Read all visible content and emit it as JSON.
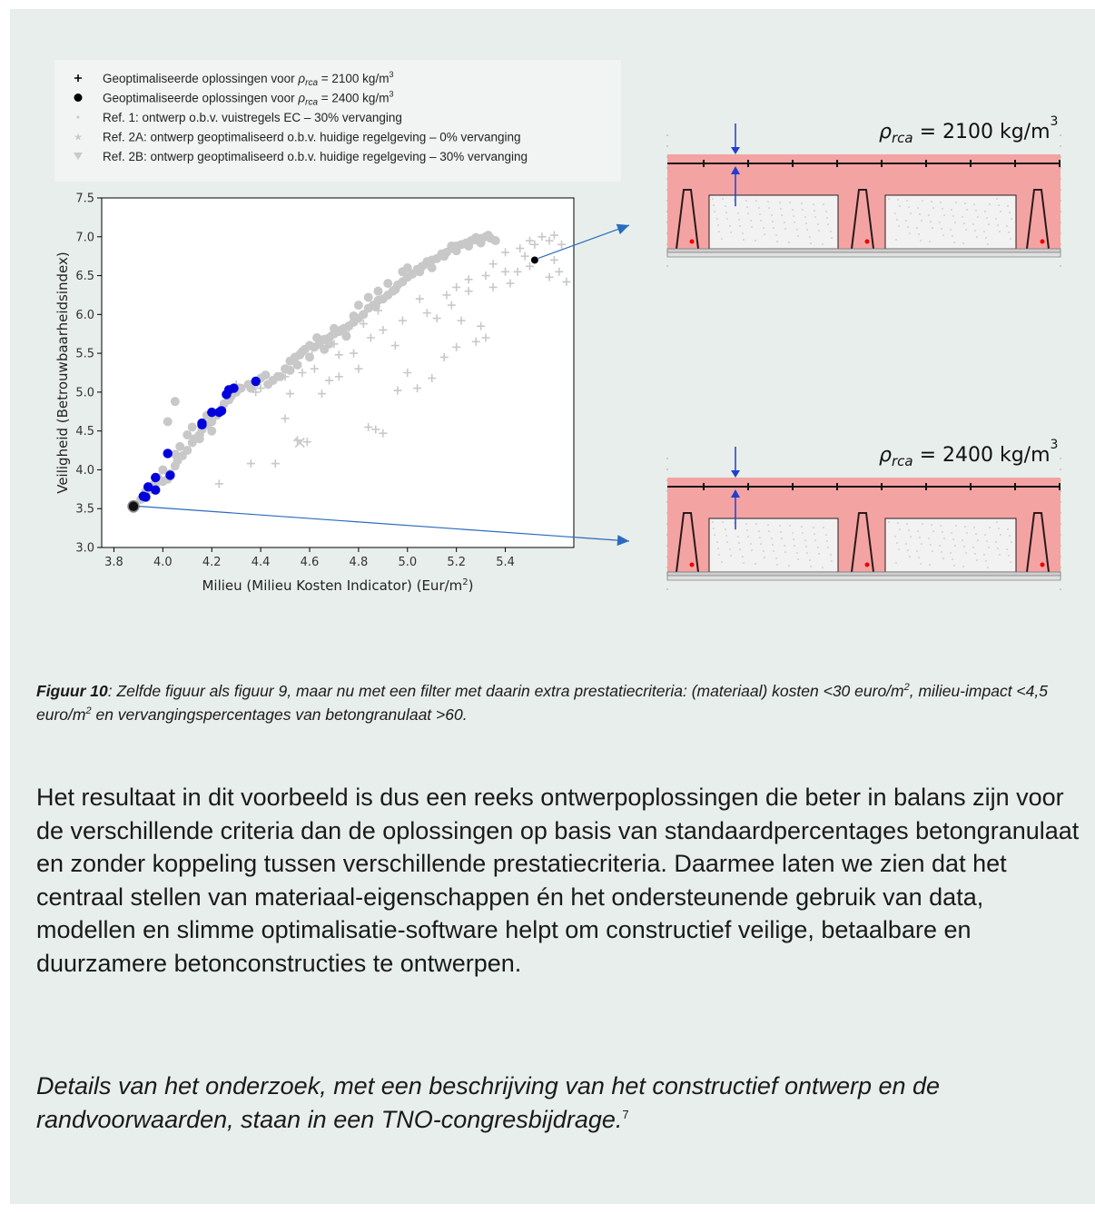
{
  "colors": {
    "background": "#e8eeec",
    "optimized": "#0000dd",
    "reference": "#c8c8c8",
    "arrow": "#2a6bbf",
    "slab_fill": "#f4a3a3"
  },
  "chart_data": {
    "type": "scatter",
    "xlabel_main": "Milieu (Milieu Kosten Indicator) (Eur/m",
    "xlabel_sup": "2",
    "xlabel_end": ")",
    "ylabel": "Veiligheid (Betrouwbaarheidsindex)",
    "xlim": [
      3.75,
      5.68
    ],
    "ylim": [
      3.0,
      7.5
    ],
    "xticks": [
      "3.8",
      "4.0",
      "4.2",
      "4.4",
      "4.6",
      "4.8",
      "5.0",
      "5.2",
      "5.4"
    ],
    "yticks": [
      "3.0",
      "3.5",
      "4.0",
      "4.5",
      "5.0",
      "5.5",
      "6.0",
      "6.5",
      "7.0",
      "7.5"
    ],
    "grid": false,
    "legend_position": "above",
    "legend": [
      {
        "marker": "plus",
        "pre": "Geoptimaliseerde oplossingen voor ",
        "rho": "ρ",
        "sub": "rca",
        "post": " = 2100 kg/m",
        "sup": "3"
      },
      {
        "marker": "dot",
        "pre": "Geoptimaliseerde oplossingen voor ",
        "rho": "ρ",
        "sub": "rca",
        "post": " = 2400 kg/m",
        "sup": "3"
      },
      {
        "marker": "small-dot",
        "pre": "Ref. 1: ontwerp o.b.v. vuistregels EC – 30% vervanging",
        "rho": "",
        "sub": "",
        "post": "",
        "sup": ""
      },
      {
        "marker": "star",
        "pre": "Ref. 2A: ontwerp geoptimaliseerd o.b.v. huidige regelgeving – 0% vervanging",
        "rho": "",
        "sub": "",
        "post": "",
        "sup": ""
      },
      {
        "marker": "triangle-down",
        "pre": "Ref. 2B: ontwerp geoptimaliseerd o.b.v. huidige regelgeving – 30% vervanging",
        "rho": "",
        "sub": "",
        "post": "",
        "sup": ""
      }
    ],
    "series": [
      {
        "name": "reference-dots",
        "marker": "dot",
        "points": [
          [
            3.88,
            3.5
          ],
          [
            3.91,
            3.62
          ],
          [
            3.93,
            3.72
          ],
          [
            3.95,
            3.75
          ],
          [
            3.97,
            3.82
          ],
          [
            4.0,
            3.85
          ],
          [
            4.02,
            3.88
          ],
          [
            4.03,
            3.95
          ],
          [
            4.05,
            4.05
          ],
          [
            4.06,
            4.12
          ],
          [
            4.08,
            4.18
          ],
          [
            4.1,
            4.25
          ],
          [
            4.12,
            4.35
          ],
          [
            4.13,
            4.4
          ],
          [
            4.15,
            4.45
          ],
          [
            4.16,
            4.52
          ],
          [
            4.18,
            4.58
          ],
          [
            4.2,
            4.62
          ],
          [
            4.22,
            4.7
          ],
          [
            4.24,
            4.78
          ],
          [
            4.25,
            4.85
          ],
          [
            4.27,
            4.9
          ],
          [
            4.3,
            5.0
          ],
          [
            4.32,
            5.05
          ],
          [
            4.35,
            5.1
          ],
          [
            4.38,
            5.12
          ],
          [
            4.4,
            5.18
          ],
          [
            4.43,
            5.1
          ],
          [
            4.45,
            5.15
          ],
          [
            4.48,
            5.2
          ],
          [
            4.5,
            5.3
          ],
          [
            4.52,
            5.4
          ],
          [
            4.54,
            5.45
          ],
          [
            4.56,
            5.48
          ],
          [
            4.58,
            5.55
          ],
          [
            4.6,
            5.6
          ],
          [
            4.62,
            5.58
          ],
          [
            4.64,
            5.62
          ],
          [
            4.66,
            5.68
          ],
          [
            4.68,
            5.7
          ],
          [
            4.7,
            5.75
          ],
          [
            4.72,
            5.78
          ],
          [
            4.74,
            5.82
          ],
          [
            4.76,
            5.85
          ],
          [
            4.78,
            5.9
          ],
          [
            4.8,
            5.95
          ],
          [
            4.82,
            6.0
          ],
          [
            4.84,
            6.08
          ],
          [
            4.86,
            6.12
          ],
          [
            4.88,
            6.18
          ],
          [
            4.9,
            6.2
          ],
          [
            4.92,
            6.25
          ],
          [
            4.94,
            6.3
          ],
          [
            4.96,
            6.38
          ],
          [
            4.98,
            6.42
          ],
          [
            5.0,
            6.48
          ],
          [
            5.02,
            6.52
          ],
          [
            5.04,
            6.58
          ],
          [
            5.06,
            6.62
          ],
          [
            5.08,
            6.65
          ],
          [
            5.1,
            6.7
          ],
          [
            5.12,
            6.72
          ],
          [
            5.14,
            6.78
          ],
          [
            5.16,
            6.8
          ],
          [
            5.18,
            6.85
          ],
          [
            5.2,
            6.88
          ],
          [
            5.22,
            6.9
          ],
          [
            5.24,
            6.92
          ],
          [
            5.26,
            6.95
          ],
          [
            5.28,
            6.96
          ],
          [
            5.3,
            6.98
          ],
          [
            5.32,
            7.0
          ],
          [
            5.34,
            6.98
          ],
          [
            5.36,
            6.95
          ],
          [
            4.1,
            4.45
          ],
          [
            4.15,
            4.4
          ],
          [
            4.2,
            4.5
          ],
          [
            4.0,
            4.0
          ],
          [
            3.98,
            3.9
          ],
          [
            4.05,
            4.2
          ],
          [
            4.28,
            4.95
          ],
          [
            4.42,
            5.22
          ],
          [
            4.57,
            5.52
          ],
          [
            4.73,
            5.8
          ],
          [
            4.87,
            6.1
          ],
          [
            4.95,
            6.32
          ],
          [
            5.05,
            6.55
          ],
          [
            5.15,
            6.75
          ],
          [
            5.25,
            6.88
          ],
          [
            4.92,
            6.4
          ],
          [
            4.84,
            6.22
          ],
          [
            4.78,
            5.98
          ],
          [
            4.7,
            5.82
          ],
          [
            4.63,
            5.7
          ],
          [
            5.1,
            6.6
          ],
          [
            5.2,
            6.82
          ],
          [
            5.3,
            6.92
          ],
          [
            4.98,
            6.55
          ],
          [
            4.88,
            6.3
          ],
          [
            4.8,
            6.12
          ],
          [
            4.66,
            5.55
          ],
          [
            4.6,
            5.45
          ],
          [
            4.52,
            5.28
          ],
          [
            4.36,
            5.05
          ],
          [
            4.18,
            4.7
          ],
          [
            4.12,
            4.55
          ],
          [
            4.07,
            4.3
          ],
          [
            3.96,
            3.8
          ],
          [
            5.0,
            6.6
          ],
          [
            5.08,
            6.68
          ],
          [
            5.18,
            6.88
          ],
          [
            5.28,
            6.99
          ],
          [
            5.33,
            7.02
          ],
          [
            4.75,
            5.72
          ],
          [
            4.68,
            5.62
          ],
          [
            4.55,
            5.35
          ],
          [
            4.47,
            5.2
          ],
          [
            4.02,
            4.62
          ],
          [
            4.05,
            4.88
          ]
        ]
      },
      {
        "name": "reference-pluses",
        "marker": "plus",
        "points": [
          [
            4.23,
            3.82
          ],
          [
            4.36,
            4.08
          ],
          [
            4.46,
            4.08
          ],
          [
            4.55,
            4.38
          ],
          [
            4.59,
            4.36
          ],
          [
            4.5,
            4.66
          ],
          [
            4.65,
            4.98
          ],
          [
            4.68,
            5.15
          ],
          [
            4.72,
            5.2
          ],
          [
            4.8,
            5.3
          ],
          [
            4.84,
            4.55
          ],
          [
            4.87,
            4.52
          ],
          [
            4.9,
            4.47
          ],
          [
            4.96,
            5.02
          ],
          [
            5.04,
            5.05
          ],
          [
            5.1,
            5.18
          ],
          [
            5.0,
            5.25
          ],
          [
            5.15,
            5.45
          ],
          [
            5.2,
            5.58
          ],
          [
            5.28,
            5.65
          ],
          [
            5.32,
            5.7
          ],
          [
            5.3,
            5.85
          ],
          [
            5.22,
            5.92
          ],
          [
            5.12,
            5.95
          ],
          [
            5.05,
            6.2
          ],
          [
            5.16,
            6.25
          ],
          [
            5.2,
            6.35
          ],
          [
            5.25,
            6.45
          ],
          [
            5.32,
            6.5
          ],
          [
            5.4,
            6.55
          ],
          [
            5.45,
            6.55
          ],
          [
            5.5,
            6.62
          ],
          [
            5.35,
            6.65
          ],
          [
            5.4,
            6.8
          ],
          [
            5.46,
            6.85
          ],
          [
            5.52,
            6.9
          ],
          [
            5.58,
            6.95
          ],
          [
            5.6,
            6.7
          ],
          [
            5.62,
            6.55
          ],
          [
            5.58,
            6.48
          ],
          [
            5.65,
            6.42
          ],
          [
            5.55,
            7.0
          ],
          [
            5.6,
            7.02
          ],
          [
            5.63,
            6.9
          ],
          [
            4.9,
            5.8
          ],
          [
            4.95,
            5.6
          ],
          [
            4.85,
            5.7
          ],
          [
            4.78,
            5.5
          ],
          [
            4.72,
            5.48
          ],
          [
            4.62,
            5.3
          ],
          [
            4.57,
            5.25
          ],
          [
            4.5,
            5.2
          ],
          [
            4.4,
            5.05
          ],
          [
            4.3,
            5.1
          ],
          [
            4.26,
            4.88
          ],
          [
            4.2,
            4.72
          ],
          [
            4.52,
            4.98
          ],
          [
            4.7,
            5.62
          ],
          [
            4.98,
            5.92
          ],
          [
            5.08,
            6.02
          ],
          [
            5.18,
            6.12
          ],
          [
            5.25,
            6.3
          ],
          [
            5.35,
            6.35
          ],
          [
            5.42,
            6.4
          ],
          [
            5.48,
            6.75
          ],
          [
            5.5,
            6.95
          ],
          [
            4.88,
            6.05
          ],
          [
            4.82,
            5.88
          ],
          [
            4.76,
            5.82
          ],
          [
            4.68,
            5.72
          ],
          [
            4.61,
            5.55
          ],
          [
            4.55,
            5.48
          ],
          [
            4.45,
            5.15
          ],
          [
            4.38,
            5.0
          ]
        ]
      },
      {
        "name": "reference-cross",
        "marker": "x",
        "points": [
          [
            4.56,
            4.35
          ]
        ]
      },
      {
        "name": "optimized-2100",
        "marker": "dot",
        "points": [
          [
            3.93,
            3.65
          ],
          [
            3.92,
            3.66
          ],
          [
            3.94,
            3.78
          ],
          [
            3.97,
            3.74
          ],
          [
            3.97,
            3.9
          ],
          [
            4.03,
            3.93
          ],
          [
            4.02,
            4.21
          ],
          [
            4.16,
            4.58
          ],
          [
            4.16,
            4.6
          ],
          [
            4.2,
            4.74
          ],
          [
            4.23,
            4.74
          ],
          [
            4.24,
            4.76
          ],
          [
            4.26,
            4.97
          ],
          [
            4.27,
            5.03
          ],
          [
            4.29,
            5.05
          ],
          [
            4.38,
            5.14
          ]
        ]
      },
      {
        "name": "optimized-2400",
        "marker": "dot",
        "points": [
          [
            3.88,
            3.53
          ],
          [
            5.52,
            6.7
          ]
        ]
      }
    ]
  },
  "diagrams": [
    {
      "label_rho": "ρ",
      "label_sub": "rca",
      "label_mid": " = 2100 kg/m",
      "label_sup": "3"
    },
    {
      "label_rho": "ρ",
      "label_sub": "rca",
      "label_mid": " = 2400 kg/m",
      "label_sup": "3"
    }
  ],
  "caption": {
    "label": "Figuur 10",
    "text1": ": Zelfde figuur als figuur 9, maar nu met een filter met daarin extra prestatiecriteria: (materiaal) kosten <30 euro/m",
    "sup1": "2",
    "text2": ", milieu-impact <4,5 euro/m",
    "sup2": "2",
    "text3": " en vervangingspercentages van betongranulaat >60."
  },
  "body_text": "Het resultaat in dit voorbeeld is dus een reeks ontwerpoplossingen die beter in balans zijn voor de verschillende criteria dan de oplossingen op basis van standaardpercentages betongranulaat en zonder koppeling tussen verschillende prestatiecriteria. Daarmee laten we zien dat het centraal stellen van materiaal-eigenschappen én het ondersteunende gebruik van data, modellen en slimme optimalisatie-software helpt om constructief veilige, betaalbare en duurzamere betonconstructies te ontwerpen.",
  "note": {
    "text": "Details van het onderzoek, met een beschrijving van het constructief ontwerp en de randvoorwaarden, staan in een TNO-congresbijdrage.",
    "sup": "7"
  }
}
